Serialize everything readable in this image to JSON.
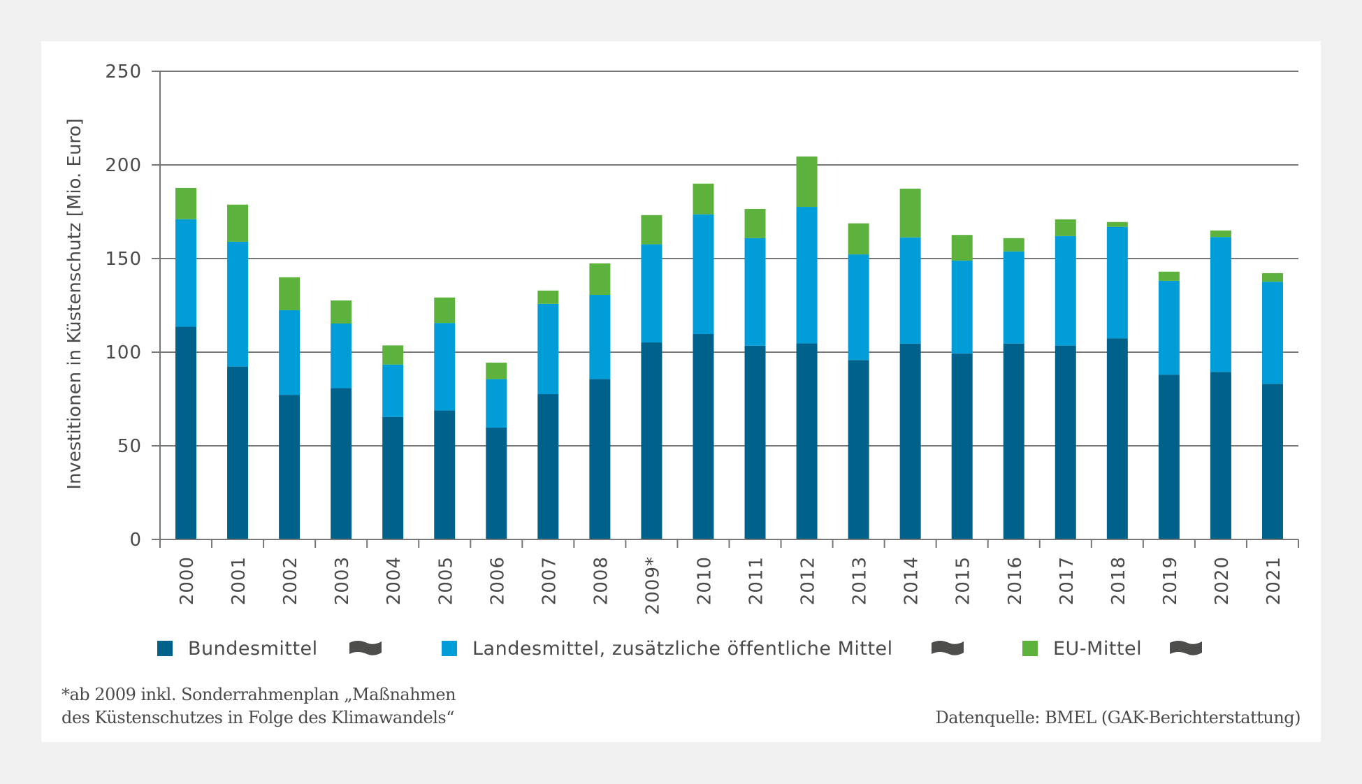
{
  "colors": {
    "bundesmittel": "#00618a",
    "landesmittel": "#009dd8",
    "eu_mittel": "#5db23e",
    "wave_icon": "#4d4d4b",
    "grid": "#777777"
  },
  "legend": {
    "items": [
      {
        "label": "Bundesmittel",
        "icon": "wave-icon"
      },
      {
        "label": "Landesmittel, zusätzliche öffentliche Mittel",
        "icon": "wave-icon"
      },
      {
        "label": "EU-Mittel",
        "icon": "wave-icon"
      }
    ]
  },
  "footnote": {
    "line1": "*ab 2009 inkl. Sonderrahmenplan „Maßnahmen",
    "line2": "des Küstenschutzes in Folge des Klimawandels“"
  },
  "source": "Datenquelle: BMEL (GAK-Berichterstattung)",
  "chart_data": {
    "type": "bar",
    "stacked": true,
    "title": "",
    "xlabel": "",
    "ylabel": "Investitionen in Küstenschutz [Mio. Euro]",
    "ylim": [
      0,
      250
    ],
    "yticks": [
      0,
      50,
      100,
      150,
      200,
      250
    ],
    "grid": true,
    "legend_position": "bottom",
    "categories": [
      "2000",
      "2001",
      "2002",
      "2003",
      "2004",
      "2005",
      "2006",
      "2007",
      "2008",
      "2009*",
      "2010",
      "2011",
      "2012",
      "2013",
      "2014",
      "2015",
      "2016",
      "2017",
      "2018",
      "2019",
      "2020",
      "2021"
    ],
    "series": [
      {
        "name": "Bundesmittel",
        "values": [
          113.6,
          92.3,
          77.2,
          80.8,
          65.4,
          68.9,
          59.7,
          77.6,
          85.6,
          105.2,
          109.7,
          103.4,
          104.7,
          95.8,
          104.5,
          99.3,
          104.6,
          103.5,
          107.4,
          88.0,
          89.4,
          83.1
        ]
      },
      {
        "name": "Landesmittel, zusätzliche öffentliche Mittel",
        "values": [
          57.4,
          66.7,
          45.2,
          34.5,
          28.0,
          46.7,
          25.9,
          48.2,
          45.0,
          52.4,
          63.9,
          57.5,
          72.9,
          56.4,
          56.8,
          49.6,
          49.2,
          58.5,
          59.5,
          50.1,
          72.1,
          54.5
        ]
      },
      {
        "name": "EU-Mittel",
        "values": [
          16.7,
          19.8,
          17.6,
          12.3,
          10.2,
          13.6,
          8.8,
          7.1,
          16.8,
          15.6,
          16.4,
          15.6,
          26.9,
          16.6,
          26.0,
          13.7,
          7.1,
          8.9,
          2.6,
          4.9,
          3.5,
          4.6
        ]
      }
    ]
  }
}
